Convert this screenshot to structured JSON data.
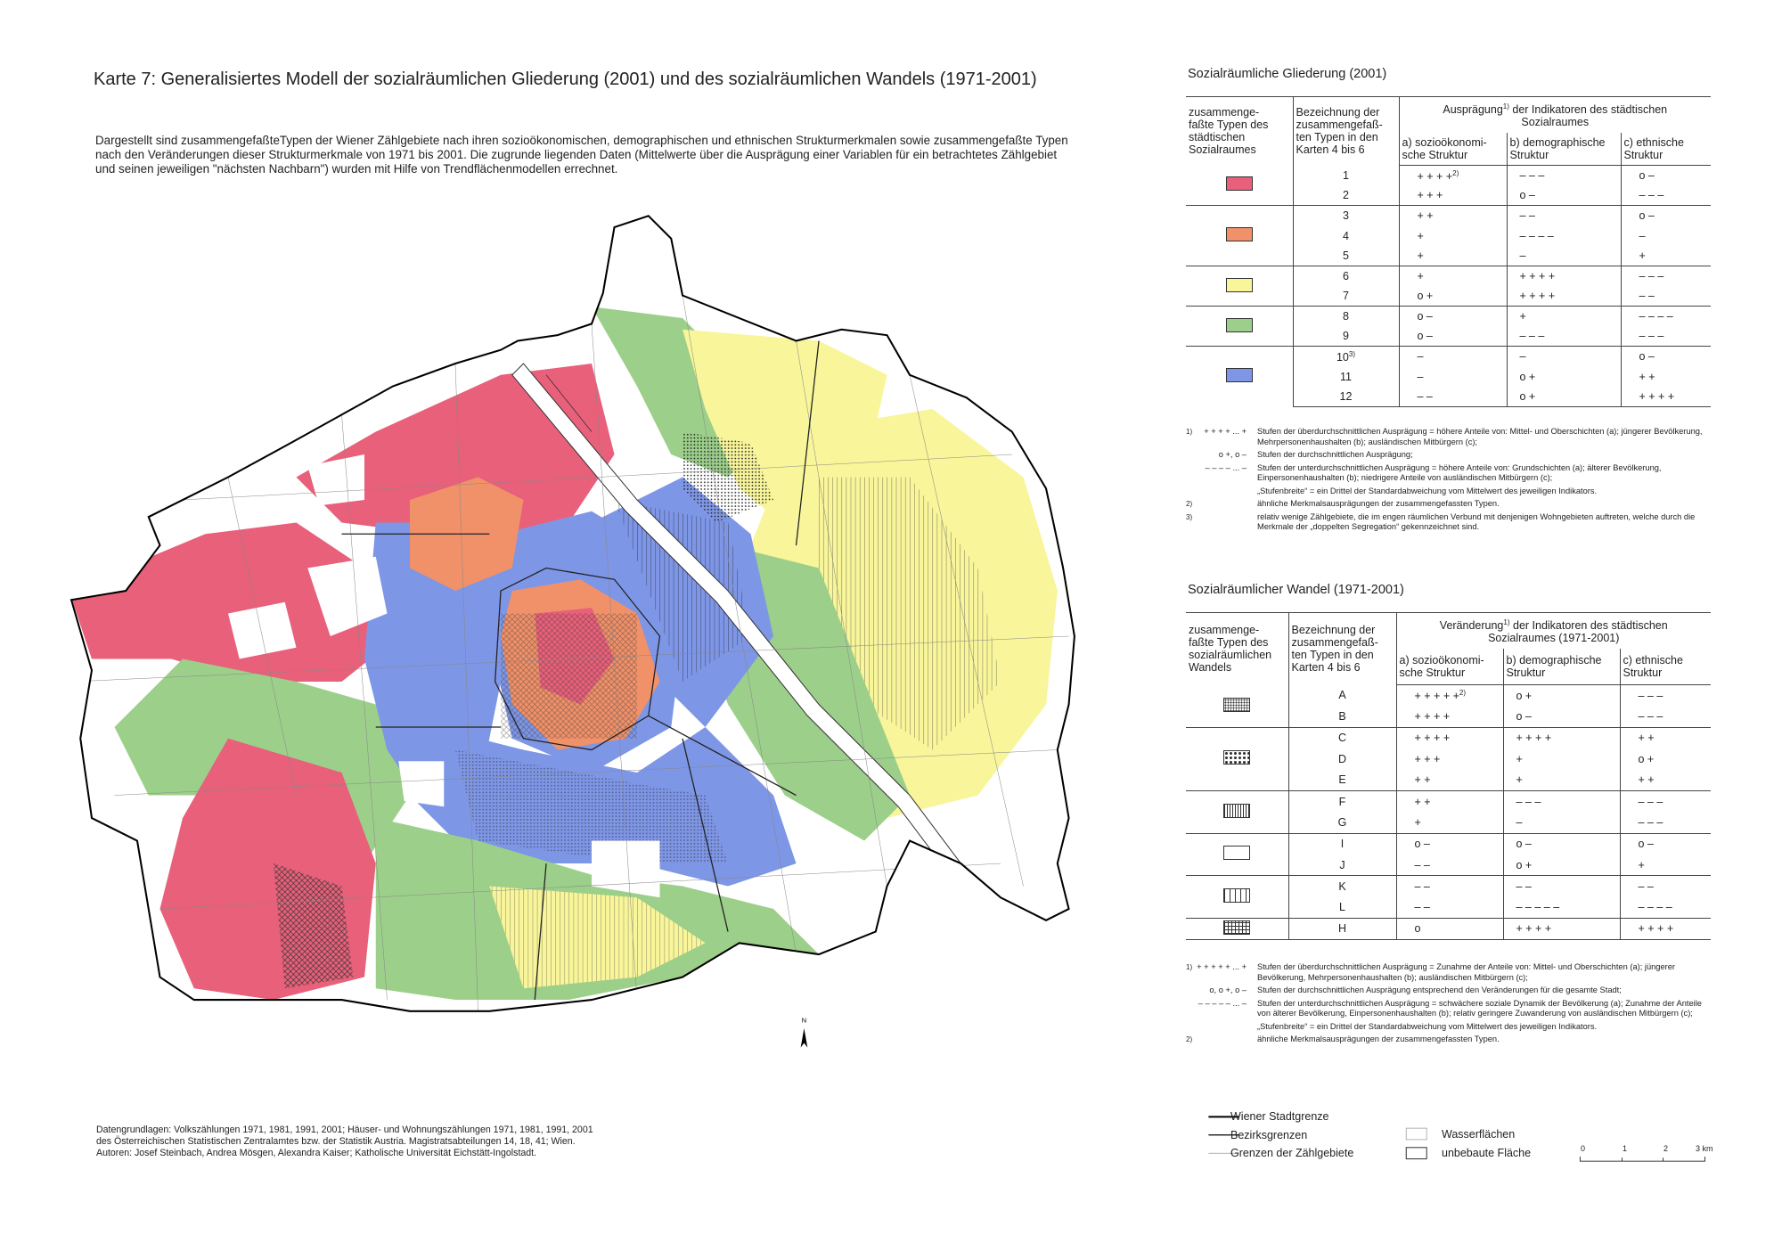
{
  "title": "Karte 7:  Generalisiertes Modell der sozialräumlichen Gliederung (2001) und des sozialräumlichen Wandels (1971-2001)",
  "description": "Dargestellt sind zusammengefaßteTypen der Wiener Zählgebiete nach ihren sozioökonomischen, demographischen und ethnischen Strukturmerkmalen sowie zusammengefaßte Typen nach den Veränderungen dieser Strukturmerkmale von 1971 bis 2001. Die zugrunde liegenden Daten (Mittelwerte über die Ausprägung einer Variablen für ein betrachtetes Zählgebiet und seinen jeweiligen \"nächsten Nachbarn\") wurden mit Hilfe von Trendflächenmodellen errechnet.",
  "north": "N",
  "sources": [
    "Datengrundlagen: Volkszählungen 1971, 1981, 1991, 2001; Häuser- und Wohnungszählungen 1971, 1981, 1991, 2001",
    "des Österreichischen Statistischen Zentralamtes bzw. der Statistik Austria. Magistratsabteilungen 14, 18, 41; Wien.",
    "Autoren: Josef Steinbach, Andrea Mösgen, Alexandra Kaiser; Katholische Universität Eichstätt-Ingolstadt."
  ],
  "table1": {
    "title": "Sozialräumliche Gliederung (2001)",
    "header": {
      "types": "zusammenge-\nfaßte Typen des\nstädtischen\nSozialraumes",
      "names": "Bezeichnung der\nzusammengefaß-\nten Typen in den\nKarten 4 bis 6",
      "span_pre": "Ausprägung",
      "span_sup": "1)",
      "span_post": " der Indikatoren des städtischen\nSozialraumes",
      "a": "a) sozioökonomi-\nsche Struktur",
      "b": "b) demographische\nStruktur",
      "c": "c) ethnische\nStruktur"
    },
    "groups": [
      {
        "color": "#e8607a",
        "rows": [
          {
            "id": "1",
            "a": "+ + + +",
            "a_sup": "2)",
            "b": "– – –",
            "c": "o –"
          },
          {
            "id": "2",
            "a": "+ + +",
            "b": "o –",
            "c": "– – –"
          }
        ]
      },
      {
        "color": "#f0916a",
        "rows": [
          {
            "id": "3",
            "a": "+ +",
            "b": "– –",
            "c": "o –"
          },
          {
            "id": "4",
            "a": "+",
            "b": "– – – –",
            "c": "–"
          },
          {
            "id": "5",
            "a": "+",
            "b": "–",
            "c": "+"
          }
        ]
      },
      {
        "color": "#f8f59a",
        "rows": [
          {
            "id": "6",
            "a": "+",
            "b": "+ + + +",
            "c": "– – –"
          },
          {
            "id": "7",
            "a": "o +",
            "b": "+ + + +",
            "c": "– –"
          }
        ]
      },
      {
        "color": "#9ccf8a",
        "rows": [
          {
            "id": "8",
            "a": "o –",
            "b": "+",
            "c": "– – – –"
          },
          {
            "id": "9",
            "a": "o –",
            "b": "– – –",
            "c": "– – –"
          }
        ]
      },
      {
        "color": "#7e96e6",
        "rows": [
          {
            "id": "10",
            "id_sup": "3)",
            "a": "–",
            "b": "–",
            "c": "o –"
          },
          {
            "id": "11",
            "a": "–",
            "b": "o +",
            "c": "+ +"
          },
          {
            "id": "12",
            "a": "– –",
            "b": "o +",
            "c": "+ + + +"
          }
        ]
      }
    ],
    "footnotes": [
      {
        "sup": "1)",
        "mark": "+ + + + ... +",
        "text": "Stufen der überdurchschnittlichen Ausprägung = höhere Anteile von: Mittel- und Oberschichten (a); jüngerer Bevölkerung, Mehrpersonenhaushalten (b); ausländischen Mitbürgern (c);"
      },
      {
        "mark": "o +, o –",
        "text": "Stufen der durchschnittlichen Ausprägung;"
      },
      {
        "mark": "– – – – ... –",
        "text": "Stufen der unterdurchschnittlichen Ausprägung = höhere Anteile von: Grundschichten (a); älterer Bevölkerung, Einpersonenhaushalten (b); niedrigere Anteile von ausländischen Mitbürgern (c);"
      },
      {
        "text": "„Stufenbreite“ = ein Drittel der Standardabweichung vom Mittelwert des jeweiligen Indikators."
      },
      {
        "sup": "2)",
        "text": "ähnliche Merkmalsausprägungen der zusammengefassten Typen."
      },
      {
        "sup": "3)",
        "text": "relativ wenige Zählgebiete, die im engen räumlichen Verbund mit denjenigen Wohngebieten auftreten, welche durch die Merkmale der „doppelten Segregation“ gekennzeichnet sind."
      }
    ]
  },
  "table2": {
    "title": "Sozialräumlicher Wandel (1971-2001)",
    "header": {
      "types": "zusammenge-\nfaßte Typen des\nsozialräumlichen\nWandels",
      "names": "Bezeichnung der\nzusammengefaß-\nten Typen in den\nKarten 4 bis 6",
      "span_pre": "Veränderung",
      "span_sup": "1)",
      "span_post": " der Indikatoren des städtischen\nSozialraumes (1971-2001)",
      "a": "a) sozioökonomi-\nsche Struktur",
      "b": "b) demographische\nStruktur",
      "c": "c) ethnische\nStruktur"
    },
    "groups": [
      {
        "rows": [
          {
            "id": "A",
            "a": "+ + + + +",
            "a_sup": "2)",
            "b": "o +",
            "c": "– – –"
          },
          {
            "id": "B",
            "a": "+ + + +",
            "b": "o –",
            "c": "– – –"
          }
        ]
      },
      {
        "rows": [
          {
            "id": "C",
            "a": "+ + + +",
            "b": "+ + + +",
            "c": "+ +"
          },
          {
            "id": "D",
            "a": "+ + +",
            "b": "+",
            "c": "o +"
          },
          {
            "id": "E",
            "a": "+ +",
            "b": "+",
            "c": "+ +"
          }
        ]
      },
      {
        "rows": [
          {
            "id": "F",
            "a": "+ +",
            "b": "– – –",
            "c": "– – –"
          },
          {
            "id": "G",
            "a": "+",
            "b": "–",
            "c": "– – –"
          }
        ]
      },
      {
        "rows": [
          {
            "id": "I",
            "a": "o –",
            "b": "o –",
            "c": "o –"
          },
          {
            "id": "J",
            "a": "– –",
            "b": "o +",
            "c": "+"
          }
        ]
      },
      {
        "rows": [
          {
            "id": "K",
            "a": "– –",
            "b": "– –",
            "c": "– –"
          },
          {
            "id": "L",
            "a": "– –",
            "b": "– – – – –",
            "c": "– – – –"
          }
        ]
      },
      {
        "rows": [
          {
            "id": "H",
            "a": "o",
            "b": "+ + + +",
            "c": "+ + + +"
          }
        ]
      }
    ],
    "footnotes": [
      {
        "sup": "1)",
        "mark": "+ + + + + ... +",
        "text": "Stufen der überdurchschnittlichen Ausprägung = Zunahme der Anteile von: Mittel- und Oberschichten (a); jüngerer Bevölkerung, Mehrpersonenhaushalten (b); ausländischen Mitbürgern (c);"
      },
      {
        "mark": "o, o +, o –",
        "text": "Stufen der durchschnittlichen Ausprägung entsprechend den Veränderungen für die gesamte Stadt;"
      },
      {
        "mark": "– – – – – ... –",
        "text": "Stufen der unterdurchschnittlichen Ausprägung = schwächere soziale Dynamik der Bevölkerung (a); Zunahme der Anteile von älterer Bevölkerung, Einpersonenhaushalten (b); relativ geringere Zuwanderung von ausländischen Mitbürgern (c);"
      },
      {
        "text": "„Stufenbreite“ = ein Drittel der Standardabweichung vom Mittelwert des jeweiligen Indikators."
      },
      {
        "sup": "2)",
        "text": "ähnliche Merkmalsausprägungen der zusammengefassten Typen."
      }
    ]
  },
  "legend": {
    "lines": [
      "Wiener Stadtgrenze",
      "Bezirksgrenzen",
      "Grenzen der Zählgebiete"
    ],
    "areas": [
      "Wasserflächen",
      "unbebaute Fläche"
    ],
    "scale": [
      "0",
      "1",
      "2",
      "3 km"
    ]
  }
}
